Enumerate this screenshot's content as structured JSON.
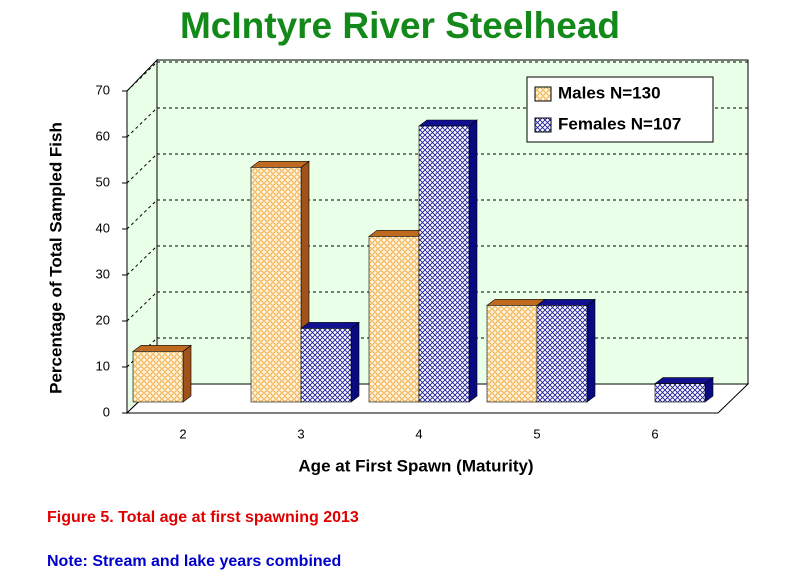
{
  "chart_data": {
    "type": "bar",
    "title": "McIntyre River Steelhead",
    "x_label": "Age at First Spawn (Maturity)",
    "y_label": "Percentage of Total Sampled Fish",
    "categories": [
      "2",
      "3",
      "4",
      "5",
      "6"
    ],
    "series": [
      {
        "name": "Males N=130",
        "color": "#f4a640",
        "values": [
          11,
          51,
          36,
          21,
          0
        ]
      },
      {
        "name": "Females N=107",
        "color": "#1c1c9c",
        "values": [
          0,
          16,
          60,
          21,
          4
        ]
      }
    ],
    "ylim": [
      0,
      70
    ],
    "yticks": [
      0,
      10,
      20,
      30,
      40,
      50,
      60,
      70
    ],
    "grid": true,
    "legend": "upper right",
    "caption": "Figure 5. Total age at first spawning 2013",
    "note": "Note: Stream and lake years combined"
  }
}
